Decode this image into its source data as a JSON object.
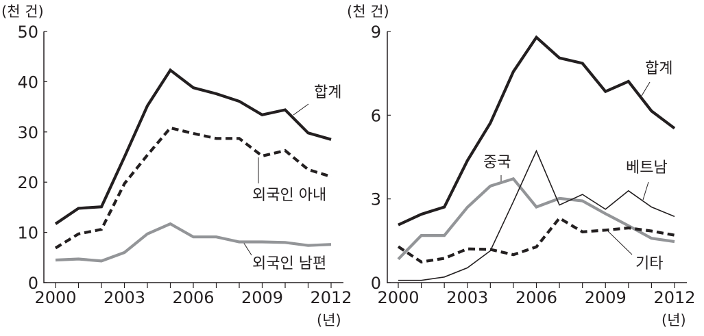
{
  "chart_data": [
    {
      "type": "line",
      "unit_label": "(천 건)",
      "x_unit_label": "(년)",
      "x": [
        2000,
        2001,
        2002,
        2003,
        2004,
        2005,
        2006,
        2007,
        2008,
        2009,
        2010,
        2011,
        2012
      ],
      "xticks": [
        "2000",
        "2003",
        "2006",
        "2009",
        "2012"
      ],
      "yticks": [
        "0",
        "10",
        "20",
        "30",
        "40",
        "50"
      ],
      "ylim": [
        0,
        50
      ],
      "xlim": [
        2000,
        2012
      ],
      "grid": false,
      "series": [
        {
          "name": "합계",
          "style": "solid-black-thick",
          "color": "#231f20",
          "values": [
            11.7,
            14.8,
            15.1,
            25.0,
            35.2,
            42.3,
            38.8,
            37.6,
            36.1,
            33.4,
            34.4,
            29.8,
            28.5
          ]
        },
        {
          "name": "외국인 아내",
          "style": "dashed-black",
          "color": "#231f20",
          "values": [
            6.9,
            9.7,
            10.6,
            19.7,
            25.4,
            30.8,
            29.7,
            28.7,
            28.7,
            25.2,
            26.3,
            22.5,
            21.1
          ]
        },
        {
          "name": "외국인 남편",
          "style": "solid-gray",
          "color": "#939598",
          "values": [
            4.5,
            4.7,
            4.3,
            6.0,
            9.7,
            11.7,
            9.1,
            9.1,
            8.1,
            8.1,
            8.0,
            7.4,
            7.6
          ]
        }
      ]
    },
    {
      "type": "line",
      "unit_label": "(천 건)",
      "x_unit_label": "(년)",
      "x": [
        2000,
        2001,
        2002,
        2003,
        2004,
        2005,
        2006,
        2007,
        2008,
        2009,
        2010,
        2011,
        2012
      ],
      "xticks": [
        "2000",
        "2003",
        "2006",
        "2009",
        "2012"
      ],
      "yticks": [
        "0",
        "3",
        "6",
        "9"
      ],
      "ylim": [
        0,
        9
      ],
      "xlim": [
        2000,
        2012
      ],
      "grid": false,
      "series": [
        {
          "name": "합계",
          "style": "solid-black-thick",
          "color": "#231f20",
          "values": [
            2.07,
            2.45,
            2.71,
            4.37,
            5.72,
            7.56,
            8.79,
            8.05,
            7.86,
            6.85,
            7.21,
            6.15,
            5.53
          ]
        },
        {
          "name": "중국",
          "style": "solid-gray",
          "color": "#939598",
          "values": [
            0.84,
            1.69,
            1.69,
            2.7,
            3.46,
            3.72,
            2.71,
            3.02,
            2.93,
            2.47,
            2.04,
            1.59,
            1.47
          ]
        },
        {
          "name": "베트남",
          "style": "solid-black-thin",
          "color": "#231f20",
          "values": [
            0.08,
            0.08,
            0.2,
            0.53,
            1.14,
            2.9,
            4.72,
            2.78,
            3.16,
            2.63,
            3.29,
            2.71,
            2.37
          ]
        },
        {
          "name": "기타",
          "style": "dashed-black",
          "color": "#231f20",
          "values": [
            1.29,
            0.74,
            0.87,
            1.21,
            1.19,
            1.0,
            1.28,
            2.31,
            1.82,
            1.88,
            1.96,
            1.85,
            1.7
          ]
        }
      ]
    }
  ]
}
